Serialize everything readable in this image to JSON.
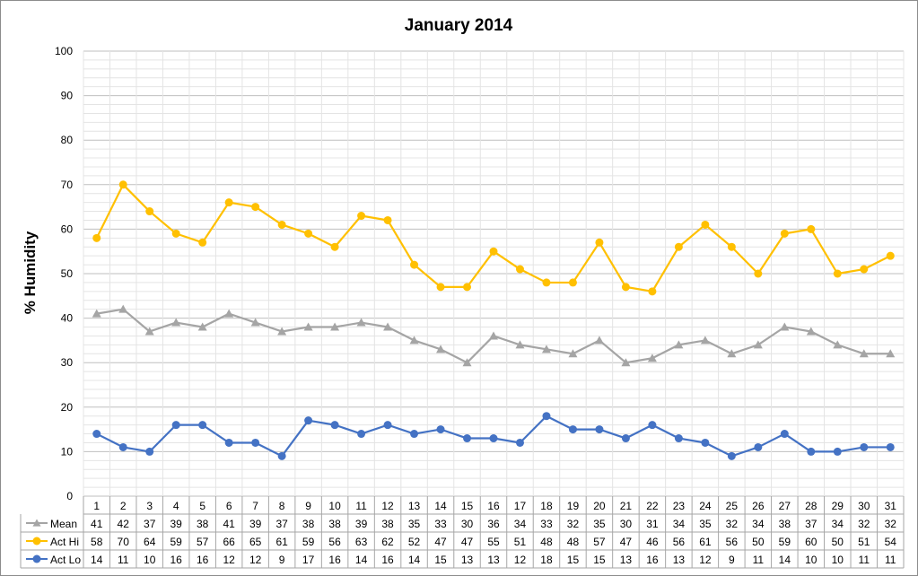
{
  "chart_data": {
    "type": "line",
    "title": "January 2014",
    "xlabel": "",
    "ylabel": "% Humidity",
    "ylim": [
      0,
      100
    ],
    "ytick_step": 10,
    "yticks": [
      "0",
      "10",
      "20",
      "30",
      "40",
      "50",
      "60",
      "70",
      "80",
      "90",
      "100"
    ],
    "minor_grid_step": 2,
    "grid": true,
    "legend": "data-table",
    "categories": [
      "1",
      "2",
      "3",
      "4",
      "5",
      "6",
      "7",
      "8",
      "9",
      "10",
      "11",
      "12",
      "13",
      "14",
      "15",
      "16",
      "17",
      "18",
      "19",
      "20",
      "21",
      "22",
      "23",
      "24",
      "25",
      "26",
      "27",
      "28",
      "29",
      "30",
      "31"
    ],
    "series": [
      {
        "name": "Mean",
        "color": "#a5a5a5",
        "marker": "triangle",
        "values": [
          41,
          42,
          37,
          39,
          38,
          41,
          39,
          37,
          38,
          38,
          39,
          38,
          35,
          33,
          30,
          36,
          34,
          33,
          32,
          35,
          30,
          31,
          34,
          35,
          32,
          34,
          38,
          37,
          34,
          32,
          32
        ]
      },
      {
        "name": "Act Hi",
        "color": "#ffc000",
        "marker": "circle",
        "values": [
          58,
          70,
          64,
          59,
          57,
          66,
          65,
          61,
          59,
          56,
          63,
          62,
          52,
          47,
          47,
          55,
          51,
          48,
          48,
          57,
          47,
          46,
          56,
          61,
          56,
          50,
          59,
          60,
          50,
          51,
          54
        ]
      },
      {
        "name": "Act Lo",
        "color": "#4472c4",
        "marker": "circle",
        "values": [
          14,
          11,
          10,
          16,
          16,
          12,
          12,
          9,
          17,
          16,
          14,
          16,
          14,
          15,
          13,
          13,
          12,
          18,
          15,
          15,
          13,
          16,
          13,
          12,
          9,
          11,
          14,
          10,
          10,
          11,
          11
        ]
      }
    ]
  }
}
